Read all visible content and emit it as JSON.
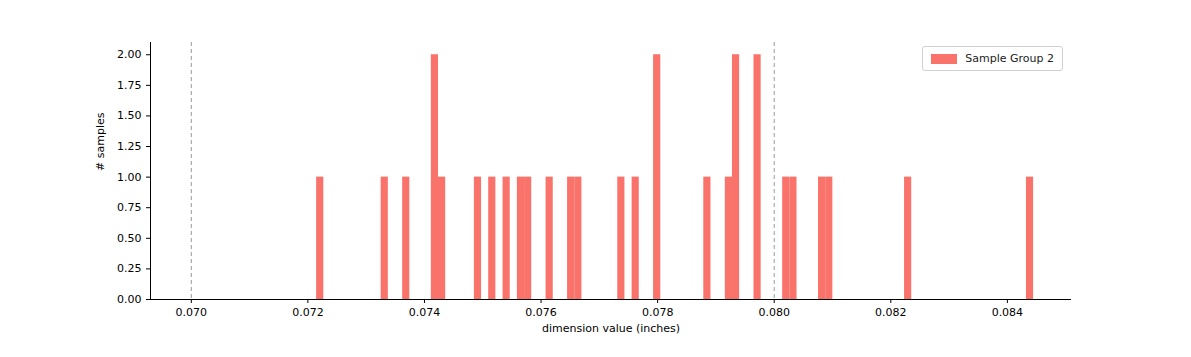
{
  "chart_data": {
    "type": "histogram",
    "x_label": "dimension value (inches)",
    "y_label": "# samples",
    "legend": "upper right",
    "bins": [
      0.07215,
      0.072273,
      0.072396,
      0.072519,
      0.072642,
      0.072765,
      0.072888,
      0.073011,
      0.073134,
      0.073257,
      0.07338,
      0.073503,
      0.073626,
      0.073749,
      0.073872,
      0.073995,
      0.074118,
      0.074241,
      0.074364,
      0.074487,
      0.07461,
      0.074733,
      0.074856,
      0.074979,
      0.075102,
      0.075225,
      0.075348,
      0.075471,
      0.075594,
      0.075717,
      0.07584,
      0.075963,
      0.076086,
      0.076209,
      0.076332,
      0.076455,
      0.076578,
      0.076701,
      0.076824,
      0.076947,
      0.07707,
      0.077193,
      0.077316,
      0.077439,
      0.077562,
      0.077685,
      0.077808,
      0.077931,
      0.078054,
      0.078177,
      0.0783,
      0.078423,
      0.078546,
      0.078669,
      0.078792,
      0.078915,
      0.079038,
      0.079161,
      0.079284,
      0.079407,
      0.07953,
      0.079653,
      0.079776,
      0.079899,
      0.080022,
      0.080145,
      0.080268,
      0.080391,
      0.080514,
      0.080637,
      0.08076,
      0.080883,
      0.081006,
      0.081129,
      0.081252,
      0.081375,
      0.081498,
      0.081621,
      0.081744,
      0.081867,
      0.08199,
      0.082113,
      0.082236,
      0.082359,
      0.082482,
      0.082605,
      0.082728,
      0.082851,
      0.082974,
      0.083097,
      0.08322,
      0.083343,
      0.083466,
      0.083589,
      0.083712,
      0.083835,
      0.083958,
      0.084081,
      0.084204,
      0.084327,
      0.08445
    ],
    "series": [
      {
        "name": "Sample Group 2",
        "color": "#f9736b",
        "values": [
          1,
          0,
          0,
          0,
          0,
          0,
          0,
          0,
          0,
          1,
          0,
          0,
          1,
          0,
          0,
          0,
          2,
          1,
          0,
          0,
          0,
          0,
          1,
          0,
          1,
          0,
          1,
          0,
          1,
          1,
          0,
          0,
          1,
          0,
          0,
          1,
          1,
          0,
          0,
          0,
          0,
          0,
          1,
          0,
          1,
          0,
          0,
          2,
          0,
          0,
          0,
          0,
          0,
          0,
          1,
          0,
          0,
          1,
          2,
          0,
          0,
          2,
          0,
          0,
          0,
          1,
          1,
          0,
          0,
          0,
          1,
          1,
          0,
          0,
          0,
          0,
          0,
          0,
          0,
          0,
          0,
          0,
          1,
          0,
          0,
          0,
          0,
          0,
          0,
          0,
          0,
          0,
          0,
          0,
          0,
          0,
          0,
          0,
          0,
          1
        ]
      }
    ],
    "vlines": [
      0.07,
      0.08
    ],
    "xlim": [
      0.0693,
      0.0851
    ],
    "xticks": [
      {
        "value": 0.07,
        "label": "0.070"
      },
      {
        "value": 0.072,
        "label": "0.072"
      },
      {
        "value": 0.074,
        "label": "0.074"
      },
      {
        "value": 0.076,
        "label": "0.076"
      },
      {
        "value": 0.078,
        "label": "0.078"
      },
      {
        "value": 0.08,
        "label": "0.080"
      },
      {
        "value": 0.082,
        "label": "0.082"
      },
      {
        "value": 0.084,
        "label": "0.084"
      }
    ],
    "ylim": [
      0,
      2.1
    ],
    "yticks": [
      {
        "value": 0,
        "label": "0.00"
      },
      {
        "value": 0.25,
        "label": "0.25"
      },
      {
        "value": 0.5,
        "label": "0.50"
      },
      {
        "value": 0.75,
        "label": "0.75"
      },
      {
        "value": 1,
        "label": "1.00"
      },
      {
        "value": 1.25,
        "label": "1.25"
      },
      {
        "value": 1.5,
        "label": "1.50"
      },
      {
        "value": 1.75,
        "label": "1.75"
      },
      {
        "value": 2,
        "label": "2.00"
      }
    ]
  }
}
